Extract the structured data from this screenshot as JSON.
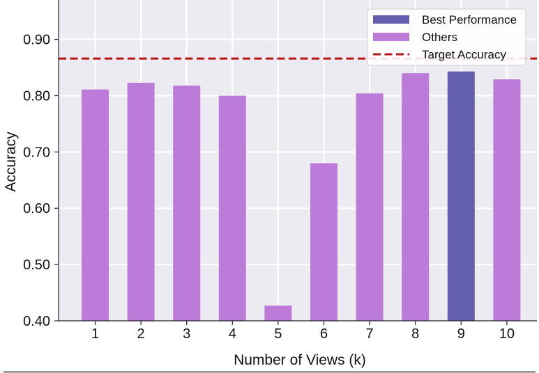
{
  "chart_data": {
    "type": "bar",
    "categories": [
      "1",
      "2",
      "3",
      "4",
      "5",
      "6",
      "7",
      "8",
      "9",
      "10"
    ],
    "values": [
      0.811,
      0.823,
      0.818,
      0.8,
      0.427,
      0.68,
      0.804,
      0.84,
      0.843,
      0.829
    ],
    "best_index": 8,
    "target_accuracy": 0.866,
    "xlabel": "Number of Views (k)",
    "ylabel": "Accuracy",
    "ylim": [
      0.4,
      0.97
    ],
    "yticks": [
      "0.40",
      "0.50",
      "0.60",
      "0.70",
      "0.80",
      "0.90"
    ],
    "ytick_values": [
      0.4,
      0.5,
      0.6,
      0.7,
      0.8,
      0.9
    ],
    "grid": true,
    "legend_position": "top-right",
    "legend": [
      {
        "label": "Best Performance",
        "kind": "bar",
        "color": "#645eae"
      },
      {
        "label": "Others",
        "kind": "bar",
        "color": "#bd7bd9"
      },
      {
        "label": "Target Accuracy",
        "kind": "dashed-line",
        "color": "#b81414"
      }
    ],
    "colors": {
      "best": "#645eae",
      "others": "#bd7bd9",
      "target": "#b81414",
      "plot_background": "#ecebf1",
      "grid": "#ffffff"
    }
  }
}
